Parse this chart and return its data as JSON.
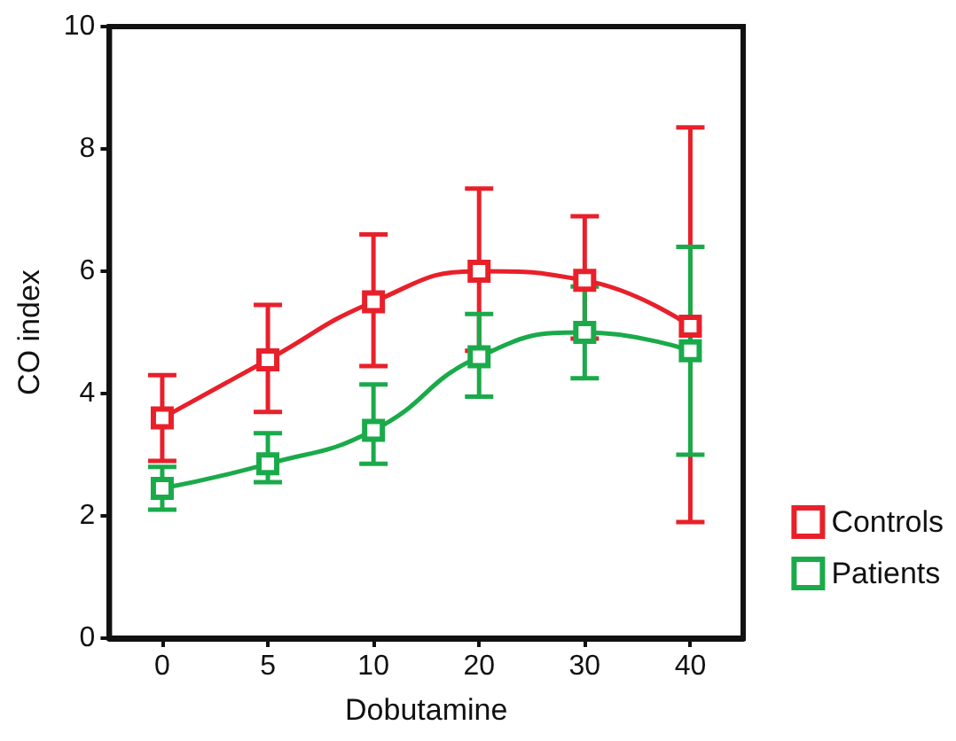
{
  "chart_data": {
    "type": "line",
    "xlabel": "Dobutamine",
    "ylabel": "CO index",
    "categories": [
      "0",
      "5",
      "10",
      "20",
      "30",
      "40"
    ],
    "series": [
      {
        "name": "Controls",
        "color": "#e8202a",
        "values": [
          3.6,
          4.55,
          5.5,
          6.0,
          5.85,
          5.1
        ],
        "errors": [
          [
            2.9,
            4.3
          ],
          [
            3.7,
            5.45
          ],
          [
            4.45,
            6.6
          ],
          [
            4.7,
            7.35
          ],
          [
            4.9,
            6.9
          ],
          [
            1.9,
            8.35
          ]
        ]
      },
      {
        "name": "Patients",
        "color": "#1aaa4a",
        "values": [
          2.45,
          2.85,
          3.4,
          4.6,
          5.0,
          4.7
        ],
        "errors": [
          [
            2.1,
            2.8
          ],
          [
            2.55,
            3.35
          ],
          [
            2.85,
            4.15
          ],
          [
            3.95,
            5.3
          ],
          [
            4.25,
            5.75
          ],
          [
            3.0,
            6.4
          ]
        ]
      }
    ],
    "ylim": [
      0,
      10
    ],
    "yticks": [
      0,
      2,
      4,
      6,
      8,
      10
    ],
    "grid": false,
    "legend": "bottom right",
    "marker": "square",
    "line_style": "solid"
  }
}
